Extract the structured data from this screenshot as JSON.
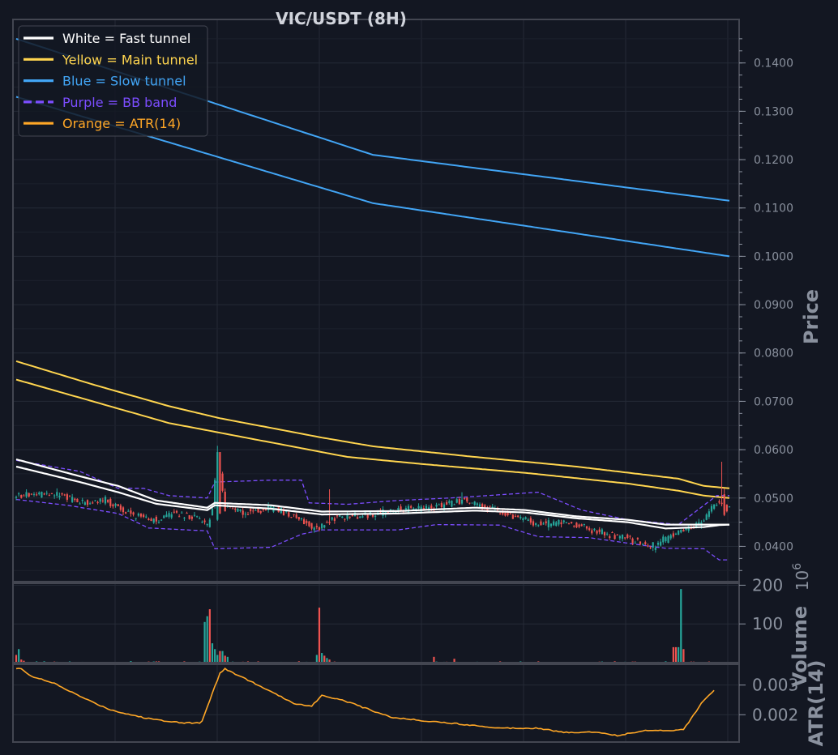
{
  "chart_data": {
    "type": "candlestick",
    "title": "VIC/USDT (8H)",
    "colors": {
      "background": "#131722",
      "grid": "#242a36",
      "frame": "#434651",
      "up": "#26a69a",
      "down": "#ef5350",
      "fast": "#ffffff",
      "main": "#ffd54f",
      "slow": "#42a5f5",
      "bb": "#7c4dff",
      "atr": "#ffa726"
    },
    "legend": [
      {
        "label": "White = Fast tunnel",
        "color": "#ffffff",
        "style": "solid"
      },
      {
        "label": "Yellow = Main tunnel",
        "color": "#ffd54f",
        "style": "solid"
      },
      {
        "label": "Blue = Slow tunnel",
        "color": "#42a5f5",
        "style": "solid"
      },
      {
        "label": "Purple = BB band",
        "color": "#7c4dff",
        "style": "dashed"
      },
      {
        "label": "Orange = ATR(14)",
        "color": "#ffa726",
        "style": "solid"
      }
    ],
    "legend_position": "top-left",
    "price_panel": {
      "ylabel": "Price",
      "ylim": [
        0.0327,
        0.149
      ],
      "yticks": [
        "0.0400",
        "0.0500",
        "0.0600",
        "0.0700",
        "0.0800",
        "0.0900",
        "0.1000",
        "0.1100",
        "0.1200",
        "0.1300",
        "0.1400"
      ],
      "ytick_values": [
        0.04,
        0.05,
        0.06,
        0.07,
        0.08,
        0.09,
        0.1,
        0.11,
        0.12,
        0.13,
        0.14
      ],
      "tunnels": {
        "slow_upper": [
          [
            0,
            0.145
          ],
          [
            140,
            0.121
          ],
          [
            280,
            0.1115
          ]
        ],
        "slow_lower": [
          [
            0,
            0.133
          ],
          [
            140,
            0.111
          ],
          [
            280,
            0.1
          ]
        ],
        "main_upper": [
          [
            0,
            0.0783
          ],
          [
            30,
            0.0735
          ],
          [
            60,
            0.069
          ],
          [
            80,
            0.0665
          ],
          [
            120,
            0.0625
          ],
          [
            140,
            0.0607
          ],
          [
            180,
            0.0585
          ],
          [
            220,
            0.0565
          ],
          [
            260,
            0.054
          ],
          [
            270,
            0.0525
          ],
          [
            280,
            0.052
          ]
        ],
        "main_lower": [
          [
            0,
            0.0745
          ],
          [
            30,
            0.07
          ],
          [
            60,
            0.0655
          ],
          [
            80,
            0.0635
          ],
          [
            120,
            0.0595
          ],
          [
            130,
            0.0585
          ],
          [
            160,
            0.057
          ],
          [
            200,
            0.0552
          ],
          [
            240,
            0.053
          ],
          [
            260,
            0.0515
          ],
          [
            270,
            0.0505
          ],
          [
            280,
            0.05
          ]
        ],
        "fast_upper": [
          [
            0,
            0.058
          ],
          [
            25,
            0.0545
          ],
          [
            40,
            0.0525
          ],
          [
            55,
            0.0495
          ],
          [
            75,
            0.048
          ],
          [
            78,
            0.049
          ],
          [
            100,
            0.0485
          ],
          [
            120,
            0.0472
          ],
          [
            150,
            0.0473
          ],
          [
            180,
            0.048
          ],
          [
            200,
            0.0475
          ],
          [
            220,
            0.0462
          ],
          [
            240,
            0.0455
          ],
          [
            255,
            0.0445
          ],
          [
            270,
            0.0445
          ],
          [
            276,
            0.0445
          ],
          [
            280,
            0.0445
          ]
        ],
        "fast_lower": [
          [
            0,
            0.0565
          ],
          [
            25,
            0.0533
          ],
          [
            40,
            0.0512
          ],
          [
            55,
            0.0488
          ],
          [
            75,
            0.0475
          ],
          [
            78,
            0.0485
          ],
          [
            100,
            0.0478
          ],
          [
            120,
            0.0466
          ],
          [
            150,
            0.0468
          ],
          [
            180,
            0.0474
          ],
          [
            200,
            0.047
          ],
          [
            220,
            0.0458
          ],
          [
            240,
            0.045
          ],
          [
            255,
            0.0437
          ],
          [
            270,
            0.044
          ],
          [
            276,
            0.0444
          ],
          [
            280,
            0.0445
          ]
        ]
      },
      "bb_band": {
        "upper": [
          [
            0,
            0.0578
          ],
          [
            25,
            0.0555
          ],
          [
            40,
            0.052
          ],
          [
            50,
            0.052
          ],
          [
            60,
            0.0505
          ],
          [
            75,
            0.05
          ],
          [
            78,
            0.0533
          ],
          [
            100,
            0.0537
          ],
          [
            112,
            0.0537
          ],
          [
            115,
            0.049
          ],
          [
            130,
            0.0487
          ],
          [
            150,
            0.0495
          ],
          [
            170,
            0.05
          ],
          [
            185,
            0.0505
          ],
          [
            205,
            0.0512
          ],
          [
            222,
            0.0475
          ],
          [
            240,
            0.0455
          ],
          [
            260,
            0.0445
          ],
          [
            275,
            0.0505
          ],
          [
            280,
            0.0505
          ]
        ],
        "lower": [
          [
            0,
            0.0497
          ],
          [
            20,
            0.0485
          ],
          [
            40,
            0.0468
          ],
          [
            52,
            0.0438
          ],
          [
            75,
            0.0432
          ],
          [
            78,
            0.0395
          ],
          [
            100,
            0.0398
          ],
          [
            112,
            0.0425
          ],
          [
            120,
            0.0434
          ],
          [
            150,
            0.0434
          ],
          [
            165,
            0.0445
          ],
          [
            190,
            0.0444
          ],
          [
            205,
            0.042
          ],
          [
            225,
            0.0418
          ],
          [
            245,
            0.0403
          ],
          [
            255,
            0.0396
          ],
          [
            270,
            0.0395
          ],
          [
            276,
            0.0372
          ],
          [
            280,
            0.0372
          ]
        ]
      },
      "close_path": [
        [
          0,
          0.0505
        ],
        [
          10,
          0.0508
        ],
        [
          18,
          0.0505
        ],
        [
          25,
          0.049
        ],
        [
          35,
          0.0495
        ],
        [
          45,
          0.0467
        ],
        [
          55,
          0.0453
        ],
        [
          62,
          0.0467
        ],
        [
          70,
          0.0462
        ],
        [
          75,
          0.0443
        ],
        [
          77,
          0.0477
        ],
        [
          79,
          0.0585
        ],
        [
          82,
          0.048
        ],
        [
          90,
          0.047
        ],
        [
          100,
          0.048
        ],
        [
          110,
          0.046
        ],
        [
          118,
          0.0435
        ],
        [
          125,
          0.046
        ],
        [
          135,
          0.0465
        ],
        [
          150,
          0.0475
        ],
        [
          165,
          0.0482
        ],
        [
          175,
          0.0495
        ],
        [
          185,
          0.048
        ],
        [
          195,
          0.046
        ],
        [
          205,
          0.0445
        ],
        [
          215,
          0.045
        ],
        [
          225,
          0.0435
        ],
        [
          240,
          0.0415
        ],
        [
          250,
          0.04
        ],
        [
          255,
          0.0415
        ],
        [
          262,
          0.0435
        ],
        [
          268,
          0.0445
        ],
        [
          272,
          0.0475
        ],
        [
          276,
          0.0495
        ],
        [
          279,
          0.048
        ]
      ]
    },
    "volume_panel": {
      "ylabel": "Volume",
      "multiplier_label": "10",
      "multiplier_exp": "6",
      "ylim": [
        0,
        205
      ],
      "yticks": [
        "100",
        "200"
      ],
      "ytick_values": [
        100,
        200
      ],
      "spikes": [
        [
          0,
          20
        ],
        [
          1,
          35
        ],
        [
          2,
          8
        ],
        [
          3,
          5
        ],
        [
          45,
          4
        ],
        [
          54,
          3
        ],
        [
          74,
          105
        ],
        [
          75,
          120
        ],
        [
          76,
          138
        ],
        [
          77,
          50
        ],
        [
          78,
          35
        ],
        [
          79,
          20
        ],
        [
          80,
          30
        ],
        [
          81,
          30
        ],
        [
          82,
          18
        ],
        [
          83,
          15
        ],
        [
          118,
          20
        ],
        [
          119,
          142
        ],
        [
          120,
          25
        ],
        [
          121,
          18
        ],
        [
          122,
          12
        ],
        [
          123,
          8
        ],
        [
          164,
          15
        ],
        [
          172,
          10
        ],
        [
          258,
          40
        ],
        [
          259,
          40
        ],
        [
          260,
          40
        ],
        [
          261,
          190
        ],
        [
          262,
          35
        ]
      ]
    },
    "atr_panel": {
      "ylabel": "ATR(14)",
      "ylim": [
        0.00108,
        0.0037
      ],
      "yticks": [
        "0.002",
        "0.003"
      ],
      "ytick_values": [
        0.002,
        0.003
      ],
      "values": [
        [
          0,
          0.00355
        ],
        [
          2,
          0.00355
        ],
        [
          6,
          0.0033
        ],
        [
          15,
          0.00305
        ],
        [
          22,
          0.00275
        ],
        [
          28,
          0.0025
        ],
        [
          36,
          0.0022
        ],
        [
          40,
          0.0021
        ],
        [
          45,
          0.002
        ],
        [
          50,
          0.0019
        ],
        [
          58,
          0.0018
        ],
        [
          66,
          0.00173
        ],
        [
          72,
          0.00172
        ],
        [
          73,
          0.0018
        ],
        [
          76,
          0.0025
        ],
        [
          80,
          0.0034
        ],
        [
          82,
          0.00355
        ],
        [
          84,
          0.00345
        ],
        [
          88,
          0.0033
        ],
        [
          96,
          0.00295
        ],
        [
          104,
          0.0026
        ],
        [
          110,
          0.00235
        ],
        [
          116,
          0.0023
        ],
        [
          120,
          0.00265
        ],
        [
          128,
          0.0025
        ],
        [
          136,
          0.00225
        ],
        [
          148,
          0.0019
        ],
        [
          160,
          0.0018
        ],
        [
          175,
          0.00168
        ],
        [
          190,
          0.00155
        ],
        [
          205,
          0.00155
        ],
        [
          215,
          0.0014
        ],
        [
          228,
          0.00142
        ],
        [
          236,
          0.0013
        ],
        [
          248,
          0.00148
        ],
        [
          256,
          0.00147
        ],
        [
          262,
          0.0015
        ],
        [
          266,
          0.002
        ],
        [
          270,
          0.0025
        ],
        [
          274,
          0.0028
        ]
      ]
    },
    "n_bars": 281,
    "grid": true
  }
}
